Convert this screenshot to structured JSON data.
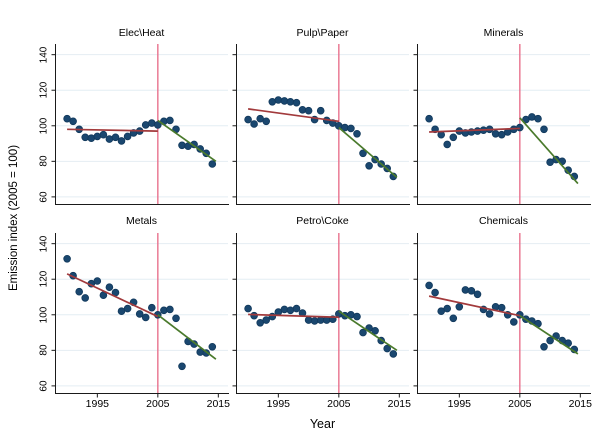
{
  "figure": {
    "y_axis_title": "Emission index (2005 = 100)",
    "x_axis_title": "Year"
  },
  "colors": {
    "dot_fill": "#1a476f",
    "dot_stroke": "#12395c",
    "pre_fit_line": "#a23a3c",
    "post_fit_line": "#4a7a2c",
    "vline": "#e8718d",
    "gridline": "#e4edf3",
    "axis": "#1a1a1a"
  },
  "chart_data": {
    "type": "scatter",
    "title": "",
    "xlabel": "Year",
    "ylabel": "Emission index (2005 = 100)",
    "x": [
      1990,
      1991,
      1992,
      1993,
      1994,
      1995,
      1996,
      1997,
      1998,
      1999,
      2000,
      2001,
      2002,
      2003,
      2004,
      2005,
      2006,
      2007,
      2008,
      2009,
      2010,
      2011,
      2012,
      2013,
      2014
    ],
    "xlim": [
      1988,
      2016.6
    ],
    "ylim": [
      56,
      146
    ],
    "y_gridlines": [
      60,
      80,
      100,
      120,
      140
    ],
    "y_ticks": [
      140,
      120,
      100,
      80,
      60
    ],
    "x_ticks": [
      1995,
      2005,
      2015
    ],
    "vline_x": 2005,
    "panels": [
      {
        "title": "Elec\\Heat",
        "values": [
          104,
          102.5,
          98,
          93.5,
          93,
          94,
          95,
          92.5,
          93.5,
          91.5,
          94,
          96,
          97,
          100.5,
          101.5,
          100.5,
          102.5,
          103,
          98,
          89,
          88.5,
          89.5,
          87,
          84.5,
          78.5
        ],
        "pre_fit": {
          "x": [
            1990,
            2005
          ],
          "y": [
            98,
            97
          ]
        },
        "post_fit": {
          "x": [
            2005,
            2014.6
          ],
          "y": [
            103,
            80
          ]
        }
      },
      {
        "title": "Pulp\\Paper",
        "values": [
          103.5,
          101,
          104,
          102.5,
          113.5,
          114.5,
          114,
          113.5,
          113,
          109,
          108.5,
          103.5,
          108.5,
          103,
          101.5,
          100,
          99,
          98.5,
          95.5,
          84.5,
          77.5,
          81,
          78.5,
          76,
          71.5
        ],
        "pre_fit": {
          "x": [
            1990,
            2005
          ],
          "y": [
            109.5,
            102.5
          ]
        },
        "post_fit": {
          "x": [
            2005,
            2014.6
          ],
          "y": [
            99,
            71
          ]
        }
      },
      {
        "title": "Minerals",
        "values": [
          104,
          98,
          95,
          89.5,
          93.5,
          97,
          96,
          96.5,
          97,
          97.5,
          98,
          95.5,
          95,
          96.5,
          98,
          99,
          103.5,
          105,
          104,
          98,
          79.5,
          81,
          80,
          75,
          71.5
        ],
        "pre_fit": {
          "x": [
            1990,
            2005
          ],
          "y": [
            96.5,
            98.5
          ]
        },
        "post_fit": {
          "x": [
            2005,
            2014.6
          ],
          "y": [
            104.5,
            67.5
          ]
        }
      },
      {
        "title": "Metals",
        "values": [
          131.5,
          122,
          113,
          109.5,
          117.5,
          119,
          111,
          115.5,
          112.5,
          102,
          103.5,
          107,
          100.5,
          98.5,
          104,
          100,
          102.5,
          103,
          98,
          71,
          85,
          83.5,
          79,
          78.5,
          82
        ],
        "pre_fit": {
          "x": [
            1990,
            2005
          ],
          "y": [
            123,
            99
          ]
        },
        "post_fit": {
          "x": [
            2005,
            2014.6
          ],
          "y": [
            100,
            75
          ]
        }
      },
      {
        "title": "Petro\\Coke",
        "values": [
          103.5,
          99.5,
          95.5,
          97,
          99,
          101.5,
          103,
          102.5,
          103.5,
          101,
          97,
          96.5,
          97,
          97,
          97.5,
          100.5,
          99.5,
          100,
          99,
          90,
          92.5,
          91,
          85.5,
          81,
          78
        ],
        "pre_fit": {
          "x": [
            1990,
            2005
          ],
          "y": [
            100.2,
            98.6
          ]
        },
        "post_fit": {
          "x": [
            2005,
            2014.6
          ],
          "y": [
            102,
            80
          ]
        }
      },
      {
        "title": "Chemicals",
        "values": [
          116.5,
          112.5,
          102,
          103.5,
          98,
          104.5,
          114,
          113.5,
          111.5,
          103,
          100.5,
          104.5,
          104,
          100,
          96,
          100,
          97.5,
          96.5,
          95,
          82,
          85.5,
          88,
          85.5,
          84,
          80.5
        ],
        "pre_fit": {
          "x": [
            1990,
            2005
          ],
          "y": [
            110.5,
            99.5
          ]
        },
        "post_fit": {
          "x": [
            2005,
            2014.6
          ],
          "y": [
            99.5,
            78
          ]
        }
      }
    ]
  }
}
